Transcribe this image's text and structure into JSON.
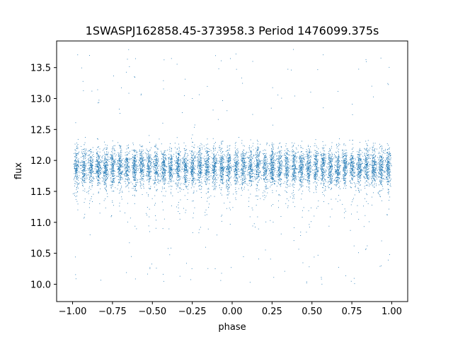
{
  "chart_data": {
    "type": "scatter",
    "title": "1SWASPJ162858.45-373958.3 Period 1476099.375s",
    "xlabel": "phase",
    "ylabel": "flux",
    "xlim": [
      -1.1,
      1.1
    ],
    "ylim": [
      9.72,
      13.93
    ],
    "xticks": [
      -1.0,
      -0.75,
      -0.5,
      -0.25,
      0.0,
      0.25,
      0.5,
      0.75,
      1.0
    ],
    "xtick_labels": [
      "−1.00",
      "−0.75",
      "−0.50",
      "−0.25",
      "0.00",
      "0.25",
      "0.50",
      "0.75",
      "1.00"
    ],
    "yticks": [
      10.0,
      10.5,
      11.0,
      11.5,
      12.0,
      12.5,
      13.0,
      13.5
    ],
    "ytick_labels": [
      "10.0",
      "10.5",
      "11.0",
      "11.5",
      "12.0",
      "12.5",
      "13.0",
      "13.5"
    ],
    "grid": false,
    "legend": "none",
    "marker_color": "#1f77b4",
    "series": [
      {
        "x_range": [
          -1.0,
          1.0
        ],
        "y_core": [
          11.4,
          12.4
        ],
        "y_spread": [
          9.9,
          13.8
        ],
        "note_points": "dense band of small dots centered near flux 11.9 with vertical streaks; sparse outliers down to ~9.9 and up to ~13.8"
      }
    ]
  }
}
